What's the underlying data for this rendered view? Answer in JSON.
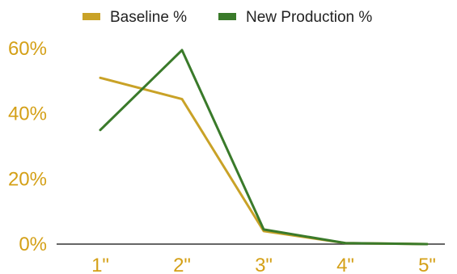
{
  "chart_data": {
    "type": "line",
    "title": "",
    "xlabel": "",
    "ylabel": "",
    "categories": [
      "1\"",
      "2\"",
      "3\"",
      "4\"",
      "5\""
    ],
    "ylim": [
      0,
      60
    ],
    "yticks": [
      0,
      20,
      40,
      60
    ],
    "ytick_labels": [
      "0%",
      "20%",
      "40%",
      "60%"
    ],
    "grid": false,
    "legend_position": "top",
    "tick_label_color": "#D4A017",
    "series": [
      {
        "name": "Baseline %",
        "color": "#C9A227",
        "values": [
          51,
          44.5,
          4,
          0.3,
          0
        ]
      },
      {
        "name": "New Production %",
        "color": "#3A7A2A",
        "values": [
          35,
          59.5,
          4.5,
          0.3,
          0
        ]
      }
    ]
  }
}
